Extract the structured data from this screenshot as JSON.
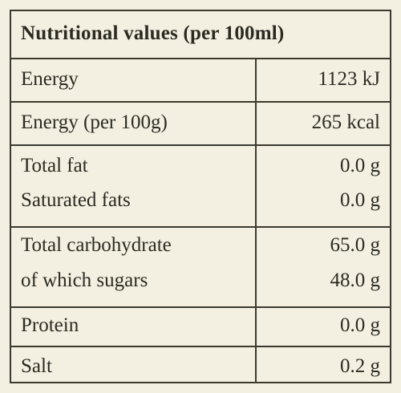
{
  "header": {
    "title": "Nutritional values (per 100ml)"
  },
  "rows": [
    [
      [
        "Energy",
        "1123 kJ"
      ]
    ],
    [
      [
        "Energy (per 100g)",
        "265 kcal"
      ]
    ],
    [
      [
        "Total fat",
        "0.0 g"
      ],
      [
        "Saturated fats",
        "0.0 g"
      ]
    ],
    [
      [
        "Total carbohydrate",
        "65.0 g"
      ],
      [
        "of which sugars",
        "48.0 g"
      ]
    ],
    [
      [
        "Protein",
        "0.0 g"
      ]
    ],
    [
      [
        "Salt",
        "0.2 g"
      ]
    ]
  ]
}
